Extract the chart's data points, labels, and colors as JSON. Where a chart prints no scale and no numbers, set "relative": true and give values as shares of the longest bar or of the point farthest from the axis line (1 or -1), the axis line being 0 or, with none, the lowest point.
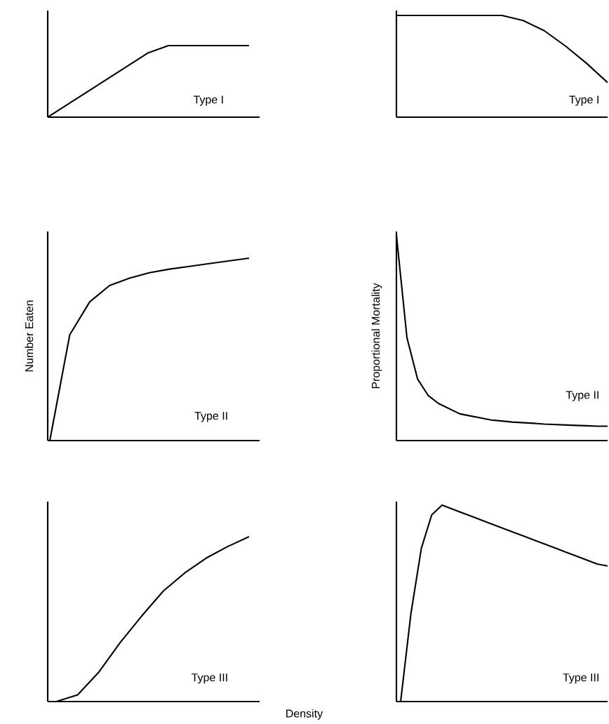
{
  "chart_data": [
    {
      "type": "line",
      "relative": true,
      "categories": [
        null,
        null,
        null,
        null,
        null,
        null,
        null,
        null,
        null,
        null,
        null
      ],
      "values": [
        0,
        0.18,
        0.36,
        0.54,
        0.72,
        0.9,
        1,
        1,
        1,
        1,
        1
      ],
      "color": "#000000",
      "annotations": [
        "Type I"
      ],
      "tick_labels": false
    },
    {
      "type": "line",
      "relative": true,
      "categories": [
        null,
        null,
        null,
        null,
        null,
        null,
        null,
        null,
        null,
        null,
        null
      ],
      "values": [
        1,
        1,
        1,
        1,
        1,
        1,
        0.95,
        0.85,
        0.7,
        0.53,
        0.34
      ],
      "color": "#000000",
      "annotations": [
        "Type I"
      ],
      "tick_labels": false
    },
    {
      "type": "line",
      "relative": true,
      "categories": [
        null,
        null,
        null,
        null,
        null,
        null,
        null,
        null,
        null,
        null,
        null
      ],
      "values": [
        0,
        0.58,
        0.76,
        0.85,
        0.89,
        0.92,
        0.94,
        0.955,
        0.97,
        0.985,
        1
      ],
      "color": "#000000",
      "ylabel": "Number Eaten",
      "annotations": [
        "Type II"
      ],
      "tick_labels": false
    },
    {
      "type": "line",
      "relative": true,
      "categories": [
        null,
        null,
        null,
        null,
        null,
        null,
        null,
        null,
        null,
        null,
        null,
        null,
        null,
        null,
        null,
        null,
        null,
        null,
        null,
        null,
        null
      ],
      "values": [
        1,
        0.5,
        0.3,
        0.22,
        0.18,
        0.155,
        0.13,
        0.12,
        0.11,
        0.1,
        0.095,
        0.09,
        0.087,
        0.084,
        0.08,
        0.078,
        0.076,
        0.074,
        0.072,
        0.07,
        0.07
      ],
      "color": "#000000",
      "ylabel": "Proportional Mortality",
      "annotations": [
        "Type II"
      ],
      "tick_labels": false
    },
    {
      "type": "line",
      "relative": true,
      "categories": [
        null,
        null,
        null,
        null,
        null,
        null,
        null,
        null,
        null,
        null
      ],
      "values": [
        0,
        0.04,
        0.18,
        0.36,
        0.52,
        0.67,
        0.78,
        0.87,
        0.94,
        1
      ],
      "color": "#000000",
      "xlabel": "Density",
      "annotations": [
        "Type III"
      ],
      "tick_labels": false
    },
    {
      "type": "line",
      "relative": true,
      "categories": [
        null,
        null,
        null,
        null,
        null,
        null,
        null,
        null,
        null,
        null,
        null,
        null,
        null,
        null,
        null,
        null,
        null,
        null,
        null,
        null,
        null
      ],
      "values": [
        0,
        0.45,
        0.78,
        0.95,
        1,
        0.98,
        0.96,
        0.94,
        0.92,
        0.9,
        0.88,
        0.86,
        0.84,
        0.82,
        0.8,
        0.78,
        0.76,
        0.74,
        0.72,
        0.7,
        0.69
      ],
      "color": "#000000",
      "annotations": [
        "Type III"
      ],
      "tick_labels": false
    }
  ]
}
